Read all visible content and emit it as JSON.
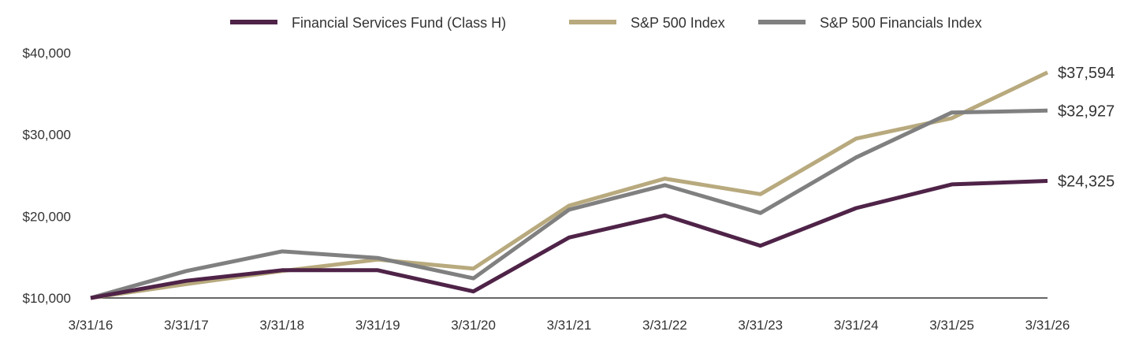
{
  "chart_data": {
    "type": "line",
    "title": "",
    "xlabel": "",
    "ylabel": "",
    "x": [
      "3/31/16",
      "3/31/17",
      "3/31/18",
      "3/31/19",
      "3/31/20",
      "3/31/21",
      "3/31/22",
      "3/31/23",
      "3/31/24",
      "3/31/25",
      "3/31/26"
    ],
    "ylim": [
      10000,
      40000
    ],
    "yticks": [
      "$10,000",
      "$20,000",
      "$30,000",
      "$40,000"
    ],
    "ytick_values": [
      10000,
      20000,
      30000,
      40000
    ],
    "grid": false,
    "legend_position": "top",
    "series": [
      {
        "name": "Financial Services Fund (Class H)",
        "color": "#4f2348",
        "values": [
          10000,
          12100,
          13400,
          13400,
          10800,
          17400,
          20100,
          16400,
          21000,
          23900,
          24325
        ],
        "end_label": "$24,325"
      },
      {
        "name": "S&P 500 Index",
        "color": "#b8aa7e",
        "values": [
          10000,
          11700,
          13300,
          14700,
          13600,
          21300,
          24600,
          22700,
          29500,
          32000,
          37594
        ],
        "end_label": "$37,594"
      },
      {
        "name": "S&P 500 Financials Index",
        "color": "#808080",
        "values": [
          10000,
          13300,
          15700,
          14900,
          12400,
          20800,
          23800,
          20400,
          27200,
          32700,
          32927
        ],
        "end_label": "$32,927"
      }
    ]
  }
}
